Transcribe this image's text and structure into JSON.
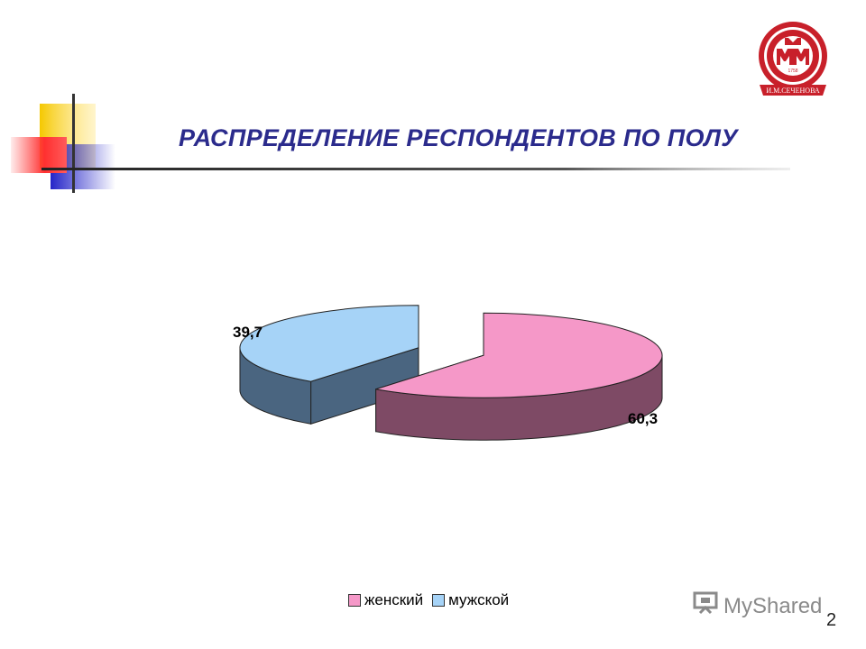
{
  "slide": {
    "title": "РАСПРЕДЕЛЕНИЕ РЕСПОНДЕНТОВ ПО ПОЛУ",
    "page_number": "2",
    "watermark": "MyShared",
    "logo_text": "И.М.СЕЧЕНОВА",
    "logo_year": "1758",
    "accent_color": "#2b2b8c"
  },
  "chart_data": {
    "type": "pie",
    "style": "3d-exploded",
    "title": "",
    "categories": [
      "женский",
      "мужской"
    ],
    "values": [
      60.3,
      39.7
    ],
    "labels": [
      "60,3",
      "39,7"
    ],
    "colors": [
      "#f598c8",
      "#a6d3f7"
    ],
    "side_colors": [
      "#7e4a65",
      "#4a6580"
    ],
    "legend_position": "bottom"
  }
}
